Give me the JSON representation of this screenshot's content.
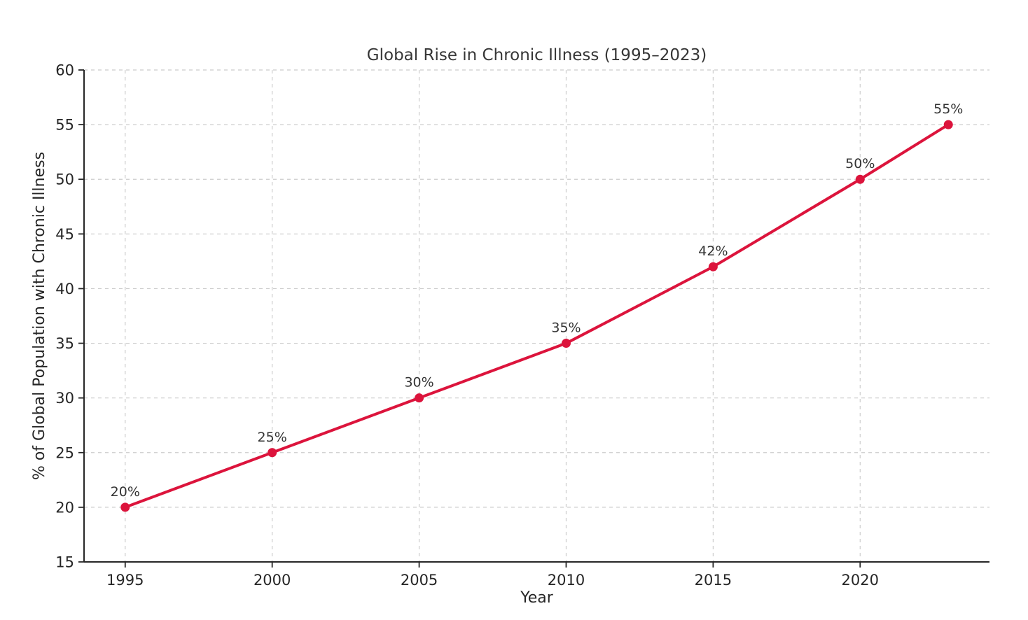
{
  "figure": {
    "background": "#ffffff"
  },
  "chart_data": {
    "type": "line",
    "title": "Global Rise in Chronic Illness (1995–2023)",
    "xlabel": "Year",
    "ylabel": "% of Global Population with Chronic Illness",
    "x": [
      1995,
      2000,
      2005,
      2010,
      2015,
      2020,
      2023
    ],
    "values": [
      20,
      25,
      30,
      35,
      42,
      50,
      55
    ],
    "point_labels": [
      "20%",
      "25%",
      "30%",
      "35%",
      "42%",
      "50%",
      "55%"
    ],
    "xticks": [
      1995,
      2000,
      2005,
      2010,
      2015,
      2020
    ],
    "xtick_labels": [
      "1995",
      "2000",
      "2005",
      "2010",
      "2015",
      "2020"
    ],
    "yticks": [
      15,
      20,
      25,
      30,
      35,
      40,
      45,
      50,
      55,
      60
    ],
    "ytick_labels": [
      "15",
      "20",
      "25",
      "30",
      "35",
      "40",
      "45",
      "50",
      "55",
      "60"
    ],
    "xlim": [
      1993.6,
      2024.4
    ],
    "ylim": [
      15,
      60
    ],
    "grid": true,
    "grid_style": "dashed",
    "legend": null,
    "colors": {
      "line": "#DC143C",
      "marker": "#DC143C",
      "grid": "#cccccc",
      "spine": "#262626",
      "tick_text": "#262626",
      "title_text": "#363636",
      "annotation_text": "#333333"
    }
  }
}
